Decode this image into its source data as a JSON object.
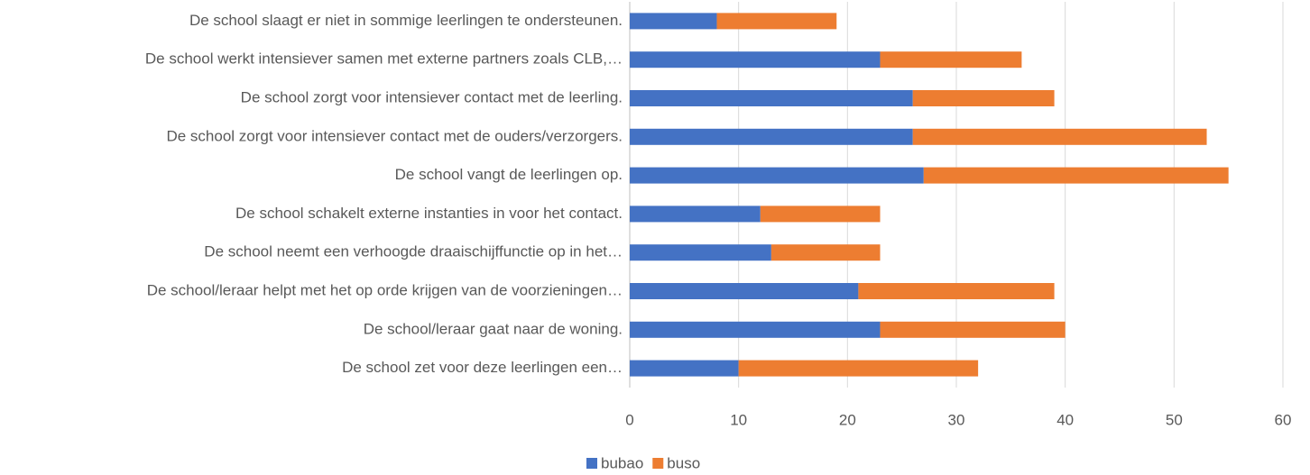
{
  "chart_data": {
    "type": "stacked_bar_horizontal",
    "categories": [
      "De school slaagt er niet in sommige leerlingen te ondersteunen.",
      "De school werkt intensiever samen met externe partners zoals CLB,…",
      "De school zorgt voor intensiever contact met de leerling.",
      "De school zorgt voor intensiever contact met de ouders/verzorgers.",
      "De school vangt de leerlingen op.",
      "De school schakelt externe instanties in voor het contact.",
      "De school neemt een verhoogde draaischijffunctie op in het…",
      "De school/leraar helpt met het op orde krijgen van de voorzieningen…",
      "De school/leraar gaat naar de woning.",
      "De school zet voor deze leerlingen een…"
    ],
    "series": [
      {
        "name": "bubao",
        "color": "#4472c4",
        "values": [
          8,
          23,
          26,
          26,
          27,
          12,
          13,
          21,
          23,
          10
        ]
      },
      {
        "name": "buso",
        "color": "#ed7d31",
        "values": [
          11,
          13,
          13,
          27,
          28,
          11,
          10,
          18,
          17,
          22
        ]
      }
    ],
    "xlim": [
      0,
      60
    ],
    "xticks": [
      0,
      10,
      20,
      30,
      40,
      50,
      60
    ],
    "grid": true,
    "legend": "bottom"
  }
}
